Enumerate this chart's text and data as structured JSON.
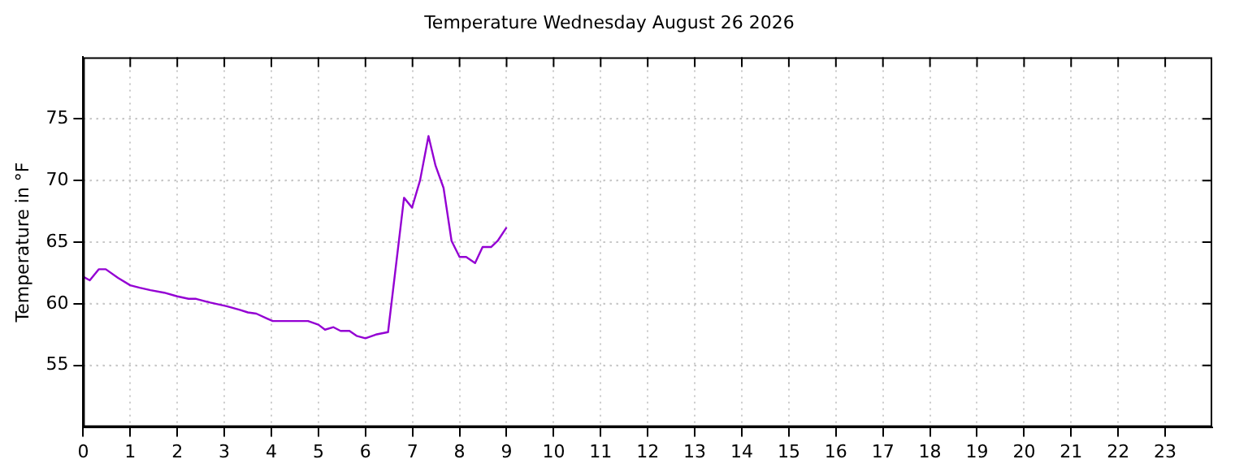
{
  "chart_data": {
    "type": "line",
    "title": "Temperature Wednesday August 26 2026",
    "ylabel": "Temperature in °F",
    "x": [
      0,
      0.14,
      0.33,
      0.48,
      0.74,
      1.0,
      1.2,
      1.43,
      1.72,
      2.0,
      2.24,
      2.4,
      2.7,
      3.05,
      3.33,
      3.5,
      3.68,
      3.91,
      4.03,
      4.31,
      4.78,
      5.0,
      5.14,
      5.32,
      5.47,
      5.66,
      5.81,
      6.0,
      6.22,
      6.48,
      6.82,
      6.99,
      7.16,
      7.34,
      7.49,
      7.66,
      7.83,
      8.0,
      8.14,
      8.33,
      8.49,
      8.67,
      8.81,
      9.0
    ],
    "series": [
      {
        "color": "#9400d3",
        "values": [
          62.2,
          61.9,
          62.8,
          62.8,
          62.1,
          61.5,
          61.3,
          61.1,
          60.9,
          60.6,
          60.4,
          60.4,
          60.1,
          59.8,
          59.5,
          59.3,
          59.2,
          58.8,
          58.6,
          58.6,
          58.6,
          58.3,
          57.9,
          58.1,
          57.8,
          57.8,
          57.4,
          57.2,
          57.5,
          57.7,
          68.6,
          67.8,
          70.0,
          73.6,
          71.2,
          69.4,
          65.1,
          63.8,
          63.8,
          63.3,
          64.6,
          64.6,
          65.1,
          66.2
        ]
      }
    ],
    "xlim": [
      0,
      24
    ],
    "xticks": [
      0,
      1,
      2,
      3,
      4,
      5,
      6,
      7,
      8,
      9,
      10,
      11,
      12,
      13,
      14,
      15,
      16,
      17,
      18,
      19,
      20,
      21,
      22,
      23
    ],
    "ylim": [
      50,
      80
    ],
    "yticks": [
      55,
      60,
      65,
      70,
      75
    ],
    "grid": true,
    "legend": false,
    "marker": "none",
    "line_style": "solid"
  }
}
